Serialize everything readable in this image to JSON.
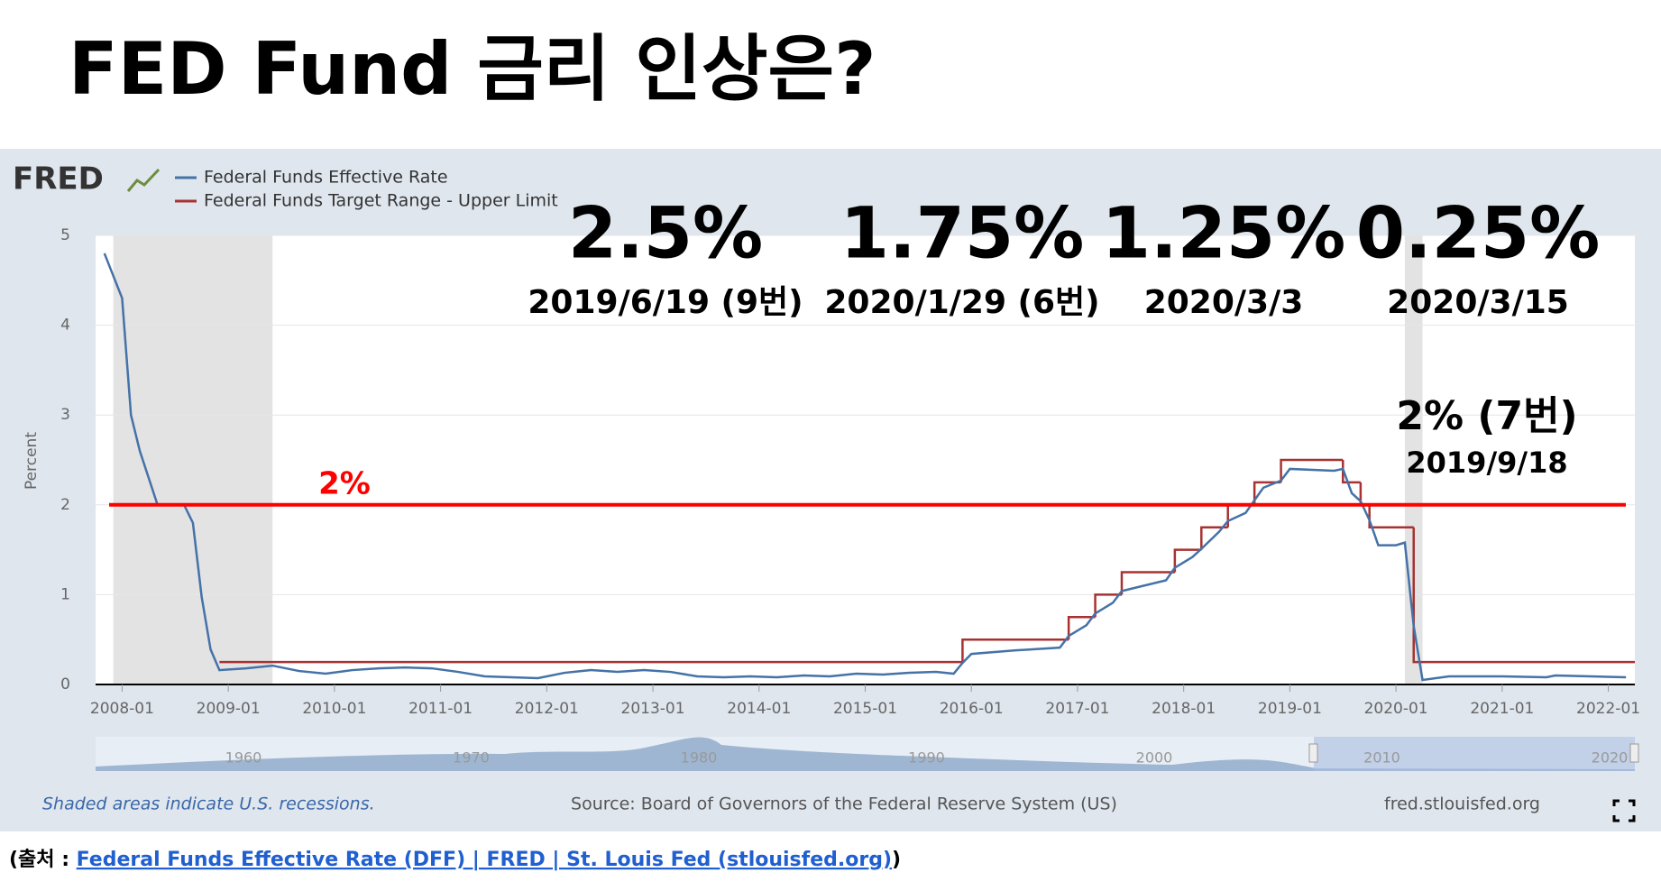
{
  "title": "FED Fund 금리 인상은?",
  "chart_data": {
    "type": "line",
    "brand": "FRED",
    "ylabel": "Percent",
    "xlim": [
      "2007-10",
      "2022-04"
    ],
    "xticks": [
      "2008-01",
      "2009-01",
      "2010-01",
      "2011-01",
      "2012-01",
      "2013-01",
      "2014-01",
      "2015-01",
      "2016-01",
      "2017-01",
      "2018-01",
      "2019-01",
      "2020-01",
      "2021-01",
      "2022-01"
    ],
    "ylim": [
      0,
      5
    ],
    "yticks": [
      0,
      1,
      2,
      3,
      4,
      5
    ],
    "grid": true,
    "recessions": [
      [
        "2007-12",
        "2009-06"
      ],
      [
        "2020-02",
        "2020-04"
      ]
    ],
    "series": [
      {
        "name": "Federal Funds Effective Rate",
        "color": "#4572a7",
        "draw": "line",
        "x": [
          "2007-11",
          "2008-01",
          "2008-02",
          "2008-03",
          "2008-04",
          "2008-05",
          "2008-06",
          "2008-07",
          "2008-08",
          "2008-09",
          "2008-10",
          "2008-11",
          "2008-12",
          "2009-03",
          "2009-06",
          "2009-09",
          "2009-12",
          "2010-03",
          "2010-06",
          "2010-09",
          "2010-12",
          "2011-03",
          "2011-06",
          "2011-09",
          "2011-12",
          "2012-03",
          "2012-06",
          "2012-09",
          "2012-12",
          "2013-03",
          "2013-06",
          "2013-09",
          "2013-12",
          "2014-03",
          "2014-06",
          "2014-09",
          "2014-12",
          "2015-03",
          "2015-06",
          "2015-09",
          "2015-11",
          "2015-12",
          "2016-01",
          "2016-06",
          "2016-11",
          "2016-12",
          "2017-02",
          "2017-03",
          "2017-05",
          "2017-06",
          "2017-11",
          "2017-12",
          "2018-02",
          "2018-03",
          "2018-05",
          "2018-06",
          "2018-08",
          "2018-10",
          "2018-12",
          "2019-01",
          "2019-06",
          "2019-07",
          "2019-08",
          "2019-09",
          "2019-10",
          "2019-11",
          "2020-01",
          "2020-02",
          "2020-03",
          "2020-04",
          "2020-07",
          "2021-01",
          "2021-06",
          "2021-07",
          "2022-03"
        ],
        "values": [
          4.8,
          4.3,
          3.0,
          2.6,
          2.3,
          2.0,
          2.0,
          2.0,
          2.0,
          1.8,
          0.97,
          0.39,
          0.16,
          0.18,
          0.21,
          0.15,
          0.12,
          0.16,
          0.18,
          0.19,
          0.18,
          0.14,
          0.09,
          0.08,
          0.07,
          0.13,
          0.16,
          0.14,
          0.16,
          0.14,
          0.09,
          0.08,
          0.09,
          0.08,
          0.1,
          0.09,
          0.12,
          0.11,
          0.13,
          0.14,
          0.12,
          0.24,
          0.34,
          0.38,
          0.41,
          0.54,
          0.66,
          0.79,
          0.91,
          1.04,
          1.16,
          1.3,
          1.42,
          1.51,
          1.7,
          1.82,
          1.91,
          2.19,
          2.27,
          2.4,
          2.38,
          2.4,
          2.13,
          2.04,
          1.83,
          1.55,
          1.55,
          1.58,
          0.65,
          0.05,
          0.09,
          0.09,
          0.08,
          0.1,
          0.08
        ]
      },
      {
        "name": "Federal Funds Target Range - Upper Limit",
        "color": "#a83232",
        "draw": "step",
        "x": [
          "2008-12",
          "2015-12",
          "2016-12",
          "2017-03",
          "2017-06",
          "2017-12",
          "2018-03",
          "2018-06",
          "2018-09",
          "2018-12",
          "2019-07",
          "2019-09",
          "2019-10",
          "2020-03"
        ],
        "values": [
          0.25,
          0.5,
          0.75,
          1.0,
          1.25,
          1.5,
          1.75,
          2.0,
          2.25,
          2.5,
          2.25,
          2.0,
          1.75,
          0.25
        ]
      }
    ],
    "hline": {
      "value": 2,
      "label": "2%",
      "color": "#ff0000"
    },
    "annotations": [
      {
        "text": "2.5%",
        "subtext": "2019/6/19 (9번)"
      },
      {
        "text": "1.75%",
        "subtext": "2020/1/29 (6번)"
      },
      {
        "text": "1.25%",
        "subtext": "2020/3/3"
      },
      {
        "text": "0.25%",
        "subtext": "2020/3/15"
      },
      {
        "text": "2% (7번)",
        "subtext": "2019/9/18"
      }
    ],
    "navigator_labels": [
      "1960",
      "1970",
      "1980",
      "1990",
      "2000",
      "2010",
      "2020"
    ],
    "notes": {
      "recession": "Shaded areas indicate U.S. recessions.",
      "source": "Source: Board of Governors of the Federal Reserve System (US)",
      "site": "fred.stlouisfed.org"
    }
  },
  "citation": {
    "prefix": "(출처 : ",
    "link": "Federal Funds Effective Rate (DFF) | FRED | St. Louis Fed (stlouisfed.org)",
    "suffix": ")"
  }
}
